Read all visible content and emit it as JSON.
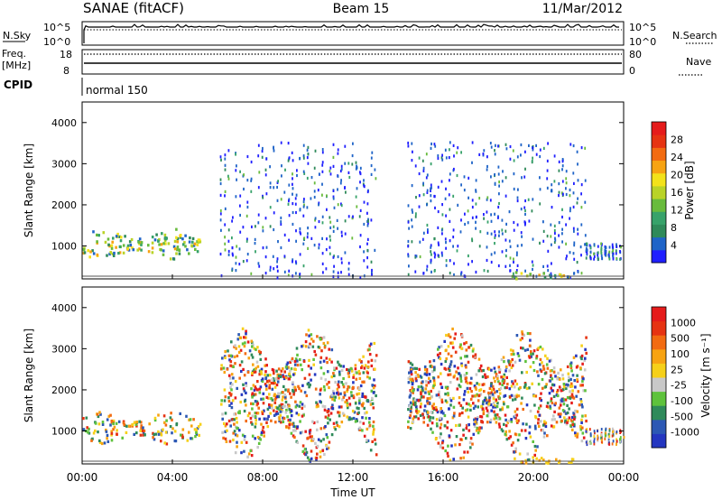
{
  "header": {
    "title": "SANAE (fitACF)",
    "beam": "Beam 15",
    "date": "11/Mar/2012"
  },
  "aux": {
    "nsky_label": "N.Sky",
    "nsearch_label": "N.Search",
    "freq_label": "Freq.",
    "freq_unit": "[MHz]",
    "nave_label": "Nave",
    "cpid_label": "CPID",
    "cpid_value": "normal 150",
    "nsky_ticks": [
      "10^5",
      "10^0"
    ],
    "nsearch_ticks": [
      "10^5",
      "10^0"
    ],
    "freq_ticks": [
      "18",
      "8"
    ],
    "nave_ticks": [
      "80",
      "0"
    ]
  },
  "chart_data": [
    {
      "type": "heatmap",
      "title": "",
      "xlabel": "Time UT",
      "ylabel": "Slant Range [km]",
      "x": [
        "00:00",
        "04:00",
        "08:00",
        "12:00",
        "16:00",
        "20:00",
        "00:00"
      ],
      "xlim": [
        0,
        24
      ],
      "ylim": [
        200,
        4500
      ],
      "y_ticks": [
        1000,
        2000,
        3000,
        4000
      ],
      "colorbar": {
        "label": "Power [dB]",
        "ticks": [
          "4",
          "8",
          "12",
          "16",
          "20",
          "24",
          "28"
        ],
        "colors": [
          "#1f1fff",
          "#1f64c8",
          "#2f8a5a",
          "#37a26a",
          "#68bb3c",
          "#b9d327",
          "#f3e21a",
          "#f7a312",
          "#f26b11",
          "#e63312",
          "#e51b1b"
        ]
      },
      "regions": [
        {
          "t0": 0.0,
          "t1": 5.2,
          "r0": 700,
          "r1": 1450,
          "level": 0.55
        },
        {
          "t0": 6.1,
          "t1": 13.0,
          "r0": 250,
          "r1": 3550,
          "level": 0.15
        },
        {
          "t0": 14.4,
          "t1": 22.3,
          "r0": 250,
          "r1": 3550,
          "level": 0.15
        },
        {
          "t0": 19.0,
          "t1": 21.8,
          "r0": 200,
          "r1": 400,
          "level": 0.6
        },
        {
          "t0": 22.3,
          "t1": 24.0,
          "r0": 700,
          "r1": 1100,
          "level": 0.35
        }
      ]
    },
    {
      "type": "heatmap",
      "title": "",
      "xlabel": "Time UT",
      "ylabel": "Slant Range [km]",
      "x": [
        "00:00",
        "04:00",
        "08:00",
        "12:00",
        "16:00",
        "20:00",
        "00:00"
      ],
      "xlim": [
        0,
        24
      ],
      "ylim": [
        200,
        4500
      ],
      "y_ticks": [
        1000,
        2000,
        3000,
        4000
      ],
      "colorbar": {
        "label": "Velocity [m s⁻¹]",
        "ticks": [
          "1000",
          "500",
          "100",
          "25",
          "-25",
          "-100",
          "-500",
          "-1000"
        ],
        "colors": [
          "#2436c0",
          "#2c58b4",
          "#2f8a5a",
          "#5ec23c",
          "#c8c8c8",
          "#f6d019",
          "#f7a312",
          "#f26b11",
          "#e63312",
          "#e51b1b"
        ]
      },
      "regions": [
        {
          "t0": 0.0,
          "t1": 5.2,
          "r0": 700,
          "r1": 1500,
          "level": 0.55
        },
        {
          "t0": 6.1,
          "t1": 13.0,
          "r0": 250,
          "r1": 3550,
          "level": 0.5
        },
        {
          "t0": 14.4,
          "t1": 22.3,
          "r0": 250,
          "r1": 3550,
          "level": 0.5
        },
        {
          "t0": 19.0,
          "t1": 21.8,
          "r0": 200,
          "r1": 400,
          "level": 0.8
        },
        {
          "t0": 22.3,
          "t1": 24.0,
          "r0": 700,
          "r1": 1100,
          "level": 0.3
        }
      ]
    }
  ]
}
